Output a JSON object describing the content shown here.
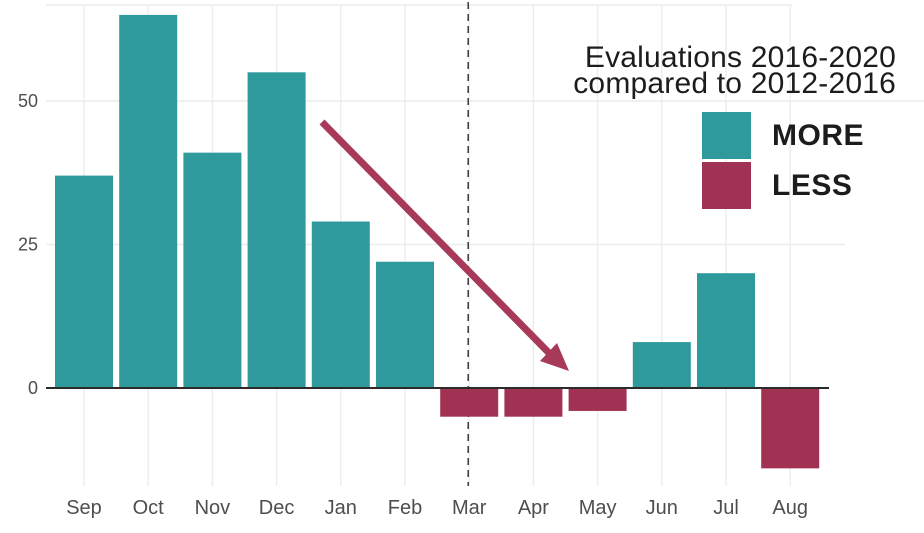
{
  "title": {
    "line1": "Evaluations 2016-2020",
    "line2": "compared to 2012-2016"
  },
  "chart_data": {
    "type": "bar",
    "title": "Evaluations 2016-2020 compared to 2012-2016",
    "title_lines": [
      "Evaluations 2016-2020",
      "compared to 2012-2016"
    ],
    "categories": [
      "Sep",
      "Oct",
      "Nov",
      "Dec",
      "Jan",
      "Feb",
      "Mar",
      "Apr",
      "May",
      "Jun",
      "Jul",
      "Aug"
    ],
    "values": [
      37,
      65,
      41,
      55,
      29,
      22,
      -5,
      -5,
      -4,
      8,
      20,
      -14
    ],
    "xlabel": "",
    "ylabel": "",
    "yticks": [
      0,
      25,
      50
    ],
    "ylim": [
      -18,
      67
    ],
    "grid": true,
    "legend_position": "top-right",
    "legend": [
      {
        "label": "MORE",
        "color": "#2f9a9c"
      },
      {
        "label": "LESS",
        "color": "#a23253"
      }
    ],
    "colors": {
      "positive": "#2f9a9c",
      "negative": "#a23253"
    },
    "annotations": {
      "dashed_vline_category": "Mar",
      "trend_arrow": {
        "direction": "down-right",
        "color": "#a63a58"
      }
    }
  },
  "style": {
    "background": "#ffffff",
    "grid_color": "#ececec",
    "axis_line_color": "#2b2b2b",
    "dashed_line_color": "#3a3a3a",
    "axis_text_color": "#4e4e4e",
    "title_color": "#1c1c1c"
  }
}
